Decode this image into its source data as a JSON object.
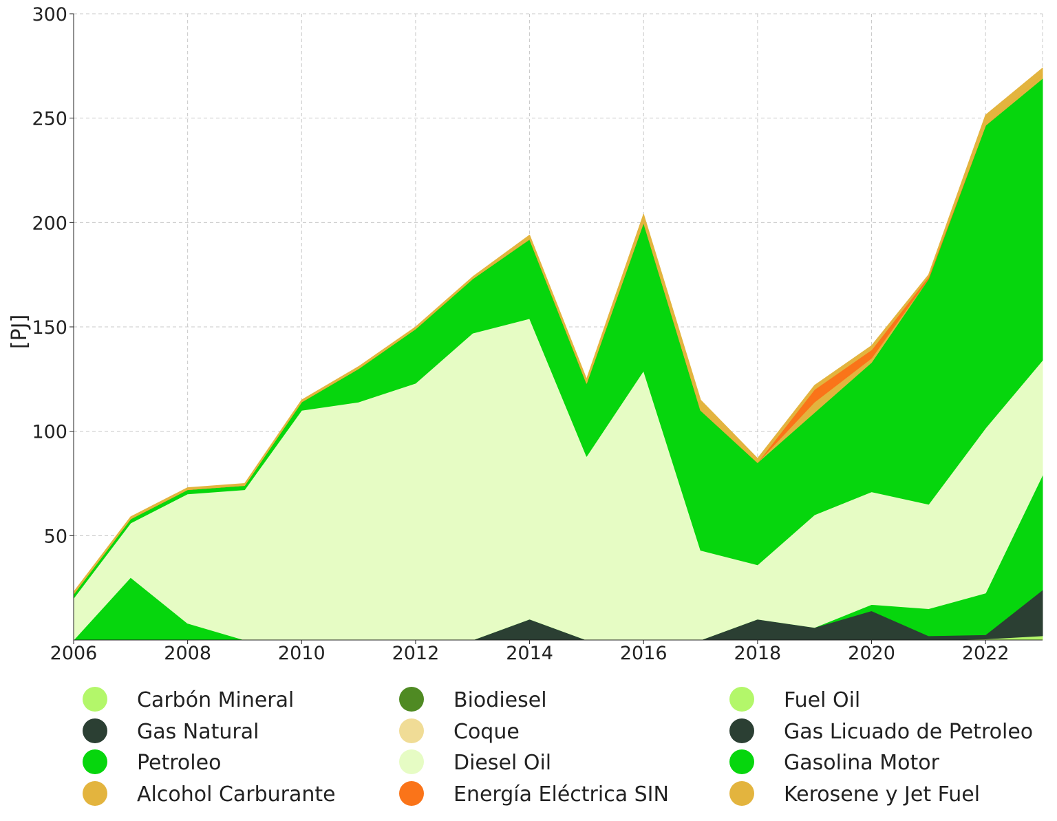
{
  "chart_data": {
    "type": "area",
    "stacked": true,
    "ylabel": "[PJ]",
    "xlabel": "",
    "title": "",
    "ylim": [
      0,
      300
    ],
    "xlim": [
      2006,
      2023
    ],
    "y_ticks": [
      50,
      100,
      150,
      200,
      250,
      300
    ],
    "x_ticks": [
      2006,
      2008,
      2010,
      2012,
      2014,
      2016,
      2018,
      2020,
      2022
    ],
    "grid": true,
    "legend_position": "bottom",
    "x": [
      2006,
      2007,
      2008,
      2009,
      2010,
      2011,
      2012,
      2013,
      2014,
      2015,
      2016,
      2017,
      2018,
      2019,
      2020,
      2021,
      2022,
      2023
    ],
    "series": [
      {
        "name": "Carbón Mineral",
        "color": "#b3f76a",
        "values": [
          0,
          0,
          0,
          0,
          0,
          0,
          0,
          0,
          0,
          0,
          0,
          0,
          0,
          0,
          0,
          0,
          0.5,
          2
        ]
      },
      {
        "name": "Biodiesel",
        "color": "#4f8a23",
        "values": [
          0,
          0,
          0,
          0,
          0,
          0,
          0,
          0,
          0,
          0,
          0,
          0,
          0,
          0,
          0,
          0,
          0,
          0
        ]
      },
      {
        "name": "Fuel Oil",
        "color": "#b3f76a",
        "values": [
          0,
          0,
          0,
          0,
          0,
          0,
          0,
          0,
          0,
          0,
          0,
          0,
          0,
          0,
          0,
          0,
          0,
          0
        ]
      },
      {
        "name": "Gas Natural",
        "color": "#2b3f33",
        "values": [
          0,
          0,
          0,
          0,
          0,
          0,
          0,
          0,
          10,
          0,
          0,
          0,
          10,
          6,
          14,
          2,
          2,
          22
        ]
      },
      {
        "name": "Coque",
        "color": "#f0dc96",
        "values": [
          0,
          0,
          0,
          0,
          0,
          0,
          0,
          0,
          0,
          0,
          0,
          0,
          0,
          0,
          0,
          0,
          0,
          0
        ]
      },
      {
        "name": "Gas Licuado de Petroleo",
        "color": "#2b3f33",
        "values": [
          0,
          0,
          0,
          0,
          0,
          0,
          0,
          0,
          0,
          0,
          0,
          0,
          0,
          0,
          0,
          0,
          0,
          0
        ]
      },
      {
        "name": "Petroleo",
        "color": "#06d60d",
        "values": [
          0,
          30,
          8,
          0,
          0,
          0,
          0,
          0,
          0,
          0,
          0,
          0,
          0,
          0,
          3,
          13,
          20,
          55
        ]
      },
      {
        "name": "Diesel Oil",
        "color": "#e6fcc4",
        "values": [
          20,
          26,
          62,
          72,
          110,
          114,
          123,
          147,
          144,
          88,
          129,
          43,
          26,
          54,
          54,
          50,
          79,
          55
        ]
      },
      {
        "name": "Gasolina Motor",
        "color": "#06d60d",
        "values": [
          2,
          2,
          2,
          2,
          4,
          16,
          26,
          26,
          38,
          35,
          71,
          67,
          49,
          49,
          62,
          108,
          145,
          135
        ]
      },
      {
        "name": "Alcohol Carburante",
        "color": "#e3b43e",
        "values": [
          0,
          0,
          0,
          0,
          0,
          0,
          0,
          0,
          0,
          0,
          0,
          0,
          0,
          5,
          2,
          0,
          0,
          2
        ]
      },
      {
        "name": "Energía Eléctrica SIN",
        "color": "#fa7419",
        "values": [
          0,
          0,
          0,
          0,
          0,
          0,
          0,
          0,
          0,
          0,
          0,
          0,
          0,
          6,
          4,
          1,
          0,
          0
        ]
      },
      {
        "name": "Kerosene y Jet Fuel",
        "color": "#e3b43e",
        "values": [
          1,
          1,
          1,
          1,
          1,
          1,
          1,
          1,
          2,
          2,
          4,
          5,
          2,
          2,
          2,
          1,
          5,
          3
        ]
      }
    ],
    "legend": [
      [
        "Carbón Mineral",
        "Biodiesel",
        "Fuel Oil"
      ],
      [
        "Gas Natural",
        "Coque",
        "Gas Licuado de Petroleo"
      ],
      [
        "Petroleo",
        "Diesel Oil",
        "Gasolina Motor"
      ],
      [
        "Alcohol Carburante",
        "Energía Eléctrica SIN",
        "Kerosene y Jet Fuel"
      ]
    ]
  }
}
